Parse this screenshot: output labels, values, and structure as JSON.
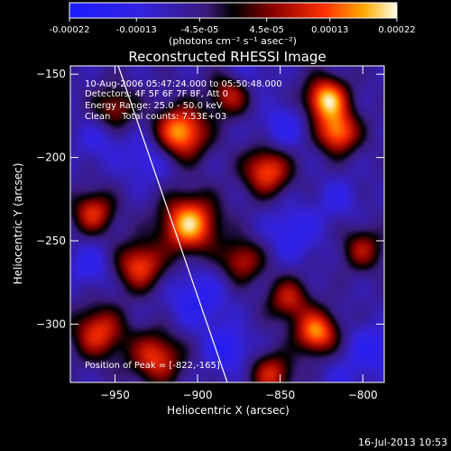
{
  "chart_data": {
    "type": "heatmap",
    "title": "Reconstructed RHESSI Image",
    "xlabel": "Heliocentric X (arcsec)",
    "ylabel": "Heliocentric Y (arcsec)",
    "xlim": [
      -977,
      -787
    ],
    "ylim": [
      -335,
      -145
    ],
    "x_ticks": [
      -950,
      -900,
      -850,
      -800
    ],
    "y_ticks": [
      -150,
      -200,
      -250,
      -300
    ],
    "colorbar": {
      "range": [
        -0.00022,
        0.00022
      ],
      "ticks": [
        {
          "value": -0.00022,
          "label": "-0.00022"
        },
        {
          "value": -0.00013,
          "label": "-0.00013"
        },
        {
          "value": -4.5e-05,
          "label": "-4.5e-05"
        },
        {
          "value": 4.5e-05,
          "label": "4.5e-05"
        },
        {
          "value": 0.00013,
          "label": "0.00013"
        },
        {
          "value": 0.00022,
          "label": "0.00022"
        }
      ],
      "unit_label": "(photons cm⁻² s⁻¹ asec⁻²)"
    },
    "annotations": [
      "10-Aug-2006 05:47:24.000 to 05:50:48.000",
      "Detectors: 4F 5F 6F 7F 8F, Att 0",
      "Energy Range: 25.0 - 50.0 keV",
      "Clean    Total counts: 7.53E+03"
    ],
    "peak_label": "Position of Peak = [-822,-165]",
    "peak_position": [
      -822,
      -165
    ],
    "limb_line": [
      [
        -948,
        -145
      ],
      [
        -882,
        -335
      ]
    ],
    "blobs": [
      {
        "x": -910,
        "y": -185,
        "v": 0.00021,
        "s": 11
      },
      {
        "x": -905,
        "y": -240,
        "v": 0.00022,
        "s": 12
      },
      {
        "x": -822,
        "y": -165,
        "v": 0.00022,
        "s": 9
      },
      {
        "x": -815,
        "y": -185,
        "v": 0.00018,
        "s": 9
      },
      {
        "x": -858,
        "y": -208,
        "v": 0.00016,
        "s": 10
      },
      {
        "x": -935,
        "y": -265,
        "v": 0.00015,
        "s": 10
      },
      {
        "x": -963,
        "y": -233,
        "v": 0.00013,
        "s": 9
      },
      {
        "x": -960,
        "y": -305,
        "v": 0.00014,
        "s": 11
      },
      {
        "x": -925,
        "y": -320,
        "v": 0.00014,
        "s": 11
      },
      {
        "x": -828,
        "y": -305,
        "v": 0.00019,
        "s": 9
      },
      {
        "x": -855,
        "y": -330,
        "v": 0.00012,
        "s": 9
      },
      {
        "x": -845,
        "y": -285,
        "v": 0.00011,
        "s": 9
      },
      {
        "x": -873,
        "y": -262,
        "v": 0.00011,
        "s": 9
      },
      {
        "x": -880,
        "y": -162,
        "v": 0.00011,
        "s": 9
      },
      {
        "x": -950,
        "y": -170,
        "v": 9e-05,
        "s": 9
      },
      {
        "x": -800,
        "y": -255,
        "v": 9e-05,
        "s": 9
      },
      {
        "x": -930,
        "y": -200,
        "v": -0.00012,
        "s": 11
      },
      {
        "x": -848,
        "y": -182,
        "v": -0.00012,
        "s": 10
      },
      {
        "x": -842,
        "y": -245,
        "v": -0.00013,
        "s": 11
      },
      {
        "x": -900,
        "y": -285,
        "v": -0.00014,
        "s": 12
      },
      {
        "x": -882,
        "y": -315,
        "v": -0.00015,
        "s": 9
      },
      {
        "x": -795,
        "y": -315,
        "v": -0.00013,
        "s": 10
      },
      {
        "x": -965,
        "y": -265,
        "v": -0.00012,
        "s": 9
      },
      {
        "x": -960,
        "y": -190,
        "v": -0.0001,
        "s": 9
      },
      {
        "x": -815,
        "y": -225,
        "v": -0.0001,
        "s": 9
      },
      {
        "x": -812,
        "y": -335,
        "v": -9e-05,
        "s": 9
      },
      {
        "x": -870,
        "y": -150,
        "v": -0.0001,
        "s": 9
      }
    ]
  },
  "footer": {
    "timestamp": "16-Jul-2013 10:53"
  }
}
